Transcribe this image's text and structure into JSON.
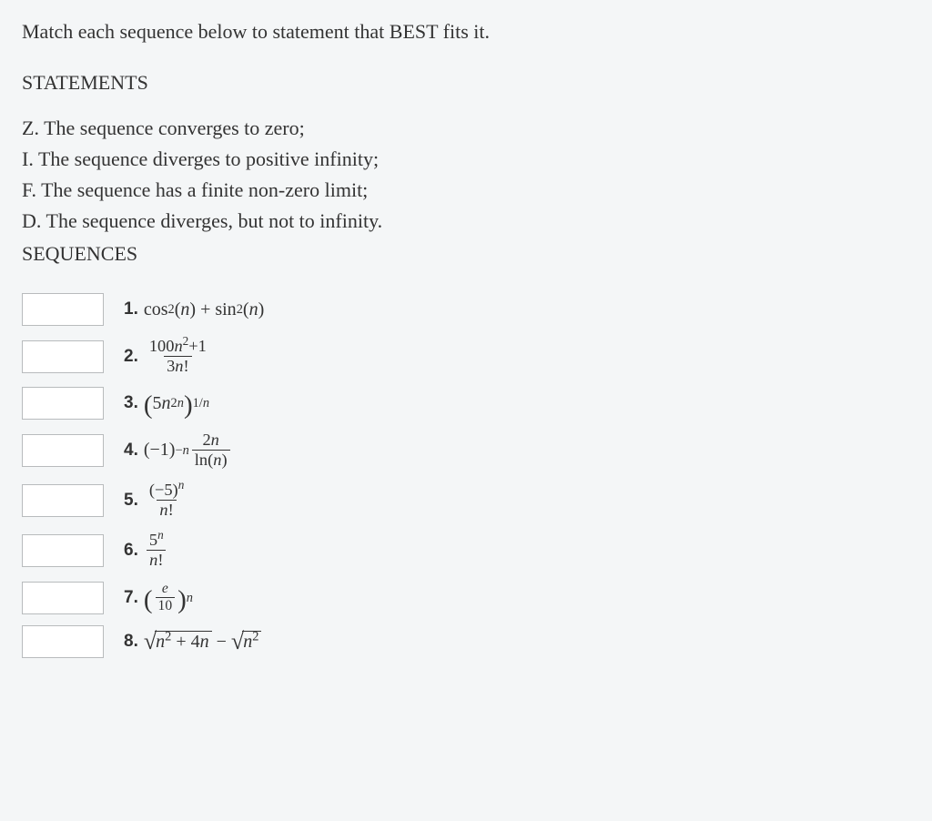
{
  "prompt_text": "Match each sequence below to statement that BEST fits it.",
  "statements_heading": "STATEMENTS",
  "statements": {
    "Z": {
      "letter": "Z.",
      "text": "The sequence converges to zero;"
    },
    "I": {
      "letter": "I.",
      "text": "The sequence diverges to positive infinity;"
    },
    "F": {
      "letter": "F.",
      "text": "The sequence has a finite non-zero limit;"
    },
    "D": {
      "letter": "D.",
      "text": "The sequence diverges, but not to infinity."
    }
  },
  "sequences_heading": "SEQUENCES",
  "sequences": [
    {
      "num": "1.",
      "plain": "cos²(n) + sin²(n)"
    },
    {
      "num": "2.",
      "plain": "(100n² + 1) / (3n!)"
    },
    {
      "num": "3.",
      "plain": "(5n^(2n))^(1/n)"
    },
    {
      "num": "4.",
      "plain": "(-1)^(-n) · 2n / ln(n)"
    },
    {
      "num": "5.",
      "plain": "(-5)^n / n!"
    },
    {
      "num": "6.",
      "plain": "5^n / n!"
    },
    {
      "num": "7.",
      "plain": "(e/10)^n"
    },
    {
      "num": "8.",
      "plain": "√(n² + 4n) − √(n²)"
    }
  ],
  "colors": {
    "background": "#f4f6f7",
    "text": "#333333",
    "input_bg": "#ffffff",
    "input_border": "#b8bbbd"
  },
  "font_sizes": {
    "body": 22,
    "math": 20,
    "seq_num": 19
  }
}
